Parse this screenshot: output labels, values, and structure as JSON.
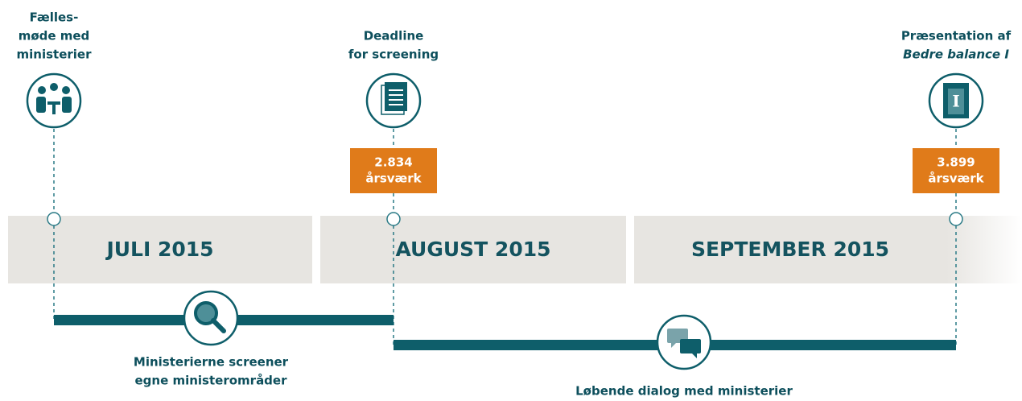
{
  "milestones": [
    {
      "label_lines": [
        "Fælles-",
        "møde med",
        "ministerier"
      ]
    },
    {
      "label_lines": [
        "Deadline",
        "for screening"
      ],
      "badge": {
        "value": "2.834",
        "unit": "årsværk"
      }
    },
    {
      "label_lines": [
        "Præsentation af",
        "Bedre balance I"
      ],
      "badge": {
        "value": "3.899",
        "unit": "årsværk"
      }
    }
  ],
  "months": [
    "JULI 2015",
    "AUGUST 2015",
    "SEPTEMBER 2015"
  ],
  "phases": [
    {
      "label_lines": [
        "Ministerierne screener",
        "egne ministerområder"
      ]
    },
    {
      "label_lines": [
        "Løbende dialog med ministerier"
      ]
    }
  ]
}
